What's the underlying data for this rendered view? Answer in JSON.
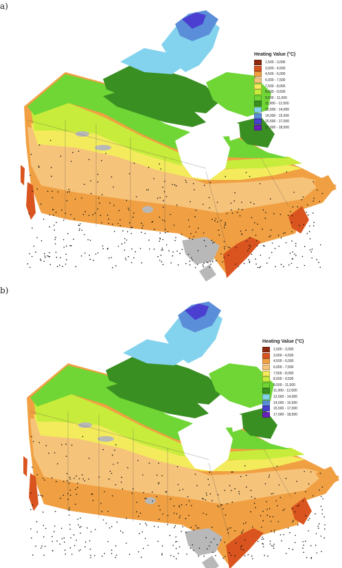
{
  "panels": [
    {
      "label": "a)"
    },
    {
      "label": "b)"
    }
  ],
  "legend": {
    "title": "Heating Value (°C)",
    "classes": [
      {
        "range": "1,500 - 3,000",
        "color": "#8b2a0e"
      },
      {
        "range": "3,000 - 4,500",
        "color": "#d9541e"
      },
      {
        "range": "4,500 - 6,000",
        "color": "#f0a042"
      },
      {
        "range": "6,000 - 7,500",
        "color": "#f6c37a"
      },
      {
        "range": "7,500 - 8,000",
        "color": "#f3eb5c"
      },
      {
        "range": "8,000 - 9,500",
        "color": "#c8ec3c"
      },
      {
        "range": "9,500 - 11,000",
        "color": "#6fd636"
      },
      {
        "range": "11,000 - 12,500",
        "color": "#3a8f22"
      },
      {
        "range": "12,500 - 14,000",
        "color": "#84d3ee"
      },
      {
        "range": "14,000 - 15,500",
        "color": "#5b8ed8"
      },
      {
        "range": "15,500 - 17,000",
        "color": "#4a3fd0"
      },
      {
        "range": "17,000 - 18,500",
        "color": "#6a1fb8"
      }
    ]
  },
  "map_colors": {
    "water": "#b8b8b8",
    "station_dot": "#111111",
    "ice_bay": "#ffffff"
  }
}
